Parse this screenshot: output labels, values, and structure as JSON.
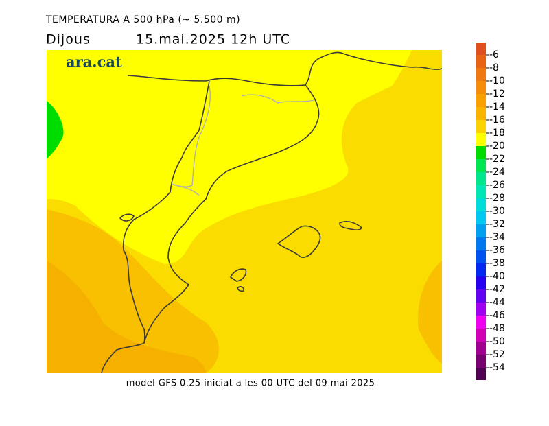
{
  "title": "TEMPERATURA A 500 hPa (~ 5.500 m)",
  "day": "Dijous",
  "date": "15.mai.2025 12h UTC",
  "logo": "ara.cat",
  "footer": "model GFS 0.25 iniciat a les 00 UTC del 09 mai 2025",
  "colorbar": {
    "levels": [
      -6,
      -8,
      -10,
      -12,
      -14,
      -16,
      -18,
      -20,
      -22,
      -24,
      -26,
      -28,
      -30,
      -32,
      -34,
      -36,
      -38,
      -40,
      -42,
      -44,
      -46,
      -48,
      -50,
      -52,
      -54
    ],
    "colors": [
      "#e0501e",
      "#e86414",
      "#f07810",
      "#f58c0a",
      "#f8a000",
      "#fab400",
      "#fcd200",
      "#ffff00",
      "#00dc00",
      "#00e650",
      "#00e68c",
      "#00e6b4",
      "#00dcdc",
      "#00c8f0",
      "#00a0f0",
      "#0078f0",
      "#0050f0",
      "#0028f0",
      "#2800f0",
      "#6400f0",
      "#a000f0",
      "#f000f0",
      "#d000b4",
      "#a00090",
      "#780070",
      "#500050"
    ]
  }
}
